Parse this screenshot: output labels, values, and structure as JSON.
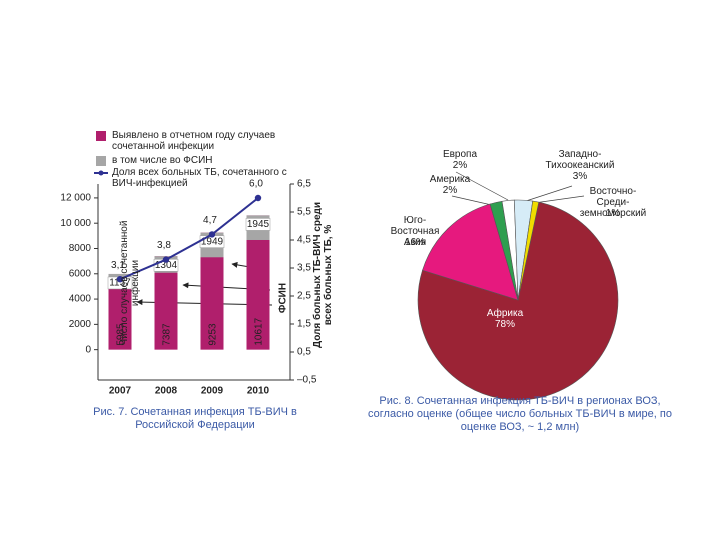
{
  "chart_data": [
    {
      "type": "bar",
      "caption": "Рис. 7. Сочетанная инфекция ТБ-ВИЧ в Российской Федерации",
      "y_label": "Число случаев сочетанной инфекции",
      "y2_label": "Доля больных ТБ-ВИЧ среди всех больных ТБ, %",
      "annotation": "ФСИН",
      "categories": [
        "2007",
        "2008",
        "2009",
        "2010"
      ],
      "series": [
        {
          "name": "Выявлено в отчетном году случаев сочетанной инфекции",
          "color": "#b01f6c",
          "values": [
            5985,
            7387,
            9253,
            10617
          ]
        },
        {
          "name": "в том числе во ФСИН",
          "color": "#a6a6a6",
          "values": [
            1157,
            1304,
            1949,
            1945
          ]
        },
        {
          "name": "Доля всех больных ТБ, сочетанного с ВИЧ-инфекцией",
          "color": "#2e3192",
          "axis": "y2",
          "type": "line",
          "values": [
            3.1,
            3.8,
            4.7,
            6.0
          ],
          "value_labels": [
            "3,1",
            "3,8",
            "4,7",
            "6,0"
          ]
        }
      ],
      "ylim": [
        -2400,
        13100
      ],
      "yticks": [
        0,
        2000,
        4000,
        6000,
        8000,
        {
          "value": 10000,
          "label": "10 000"
        },
        {
          "value": 12000,
          "label": "12 000"
        }
      ],
      "y2lim": [
        -0.5,
        6.5
      ],
      "y2ticks": [
        {
          "value": -0.5,
          "label": "–0,5"
        },
        {
          "value": 0.5,
          "label": "0,5"
        },
        {
          "value": 1.5,
          "label": "1,5"
        },
        {
          "value": 2.5,
          "label": "2,5"
        },
        {
          "value": 3.5,
          "label": "3,5"
        },
        {
          "value": 4.5,
          "label": "4,5"
        },
        {
          "value": 5.5,
          "label": "5,5"
        },
        {
          "value": 6.5,
          "label": "6,5"
        }
      ]
    },
    {
      "type": "pie",
      "caption": "Рис. 8. Сочетанная инфекция ТБ-ВИЧ в регионах ВОЗ, согласно оценке (общее число больных ТБ-ВИЧ в мире, по оценке ВОЗ, ~ 1,2 млн)",
      "categories": [
        "Африка",
        "Юго-Восточная\nАзия",
        "Америка",
        "Европа",
        "Западно-\nТихоокеанский",
        "Восточно-Среди-\nземноморский"
      ],
      "values": [
        78,
        16,
        2,
        2,
        3,
        1
      ],
      "value_labels": [
        "78%",
        "16%",
        "2%",
        "2%",
        "3%",
        "1%"
      ],
      "colors": [
        "#9b2335",
        "#e6197e",
        "#2e9e4f",
        "#ffffff",
        "#d6ecf7",
        "#f0dc00"
      ]
    }
  ]
}
